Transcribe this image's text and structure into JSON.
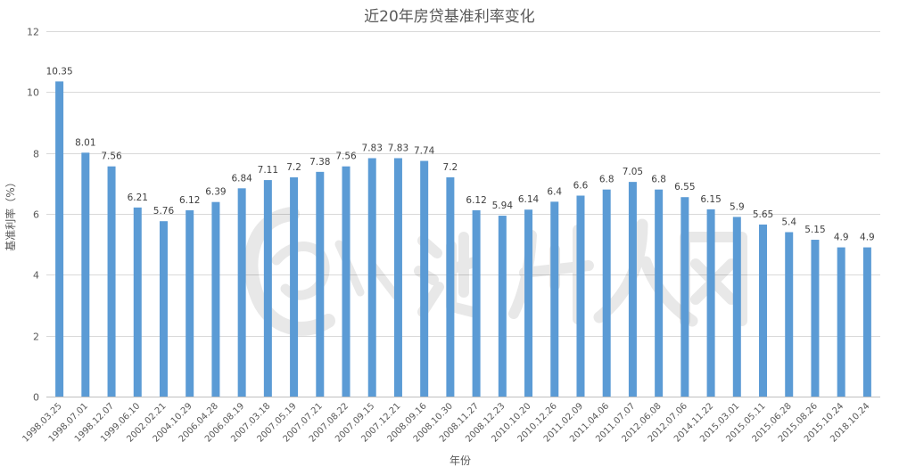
{
  "chart_data": {
    "type": "bar",
    "title": "近20年房贷基准利率变化",
    "xlabel": "年份",
    "ylabel": "基准利率（%）",
    "ylim": [
      0,
      12
    ],
    "yticks": [
      0,
      2,
      4,
      6,
      8,
      10,
      12
    ],
    "grid": true,
    "legend": "none",
    "bar_color": "#5b9bd5",
    "categories": [
      "1998.03.25",
      "1998.07.01",
      "1998.12.07",
      "1999.06.10",
      "2002.02.21",
      "2004.10.29",
      "2006.04.28",
      "2006.08.19",
      "2007.03.18",
      "2007.05.19",
      "2007.07.21",
      "2007.08.22",
      "2007.09.15",
      "2007.12.21",
      "2008.09.16",
      "2008.10.30",
      "2008.11.27",
      "2008.12.23",
      "2010.10.20",
      "2010.12.26",
      "2011.02.09",
      "2011.04.06",
      "2011.07.07",
      "2012.06.08",
      "2012.07.06",
      "2014.11.22",
      "2015.03.01",
      "2015.05.11",
      "2015.06.28",
      "2015.08.26",
      "2015.10.24",
      "2018.10.24"
    ],
    "values": [
      10.35,
      8.01,
      7.56,
      6.21,
      5.76,
      6.12,
      6.39,
      6.84,
      7.11,
      7.2,
      7.38,
      7.56,
      7.83,
      7.83,
      7.74,
      7.2,
      6.12,
      5.94,
      6.14,
      6.4,
      6.6,
      6.8,
      7.05,
      6.8,
      6.55,
      6.15,
      5.9,
      5.65,
      5.4,
      5.15,
      4.9,
      4.9
    ]
  },
  "watermark": {
    "text": "池州人网"
  }
}
